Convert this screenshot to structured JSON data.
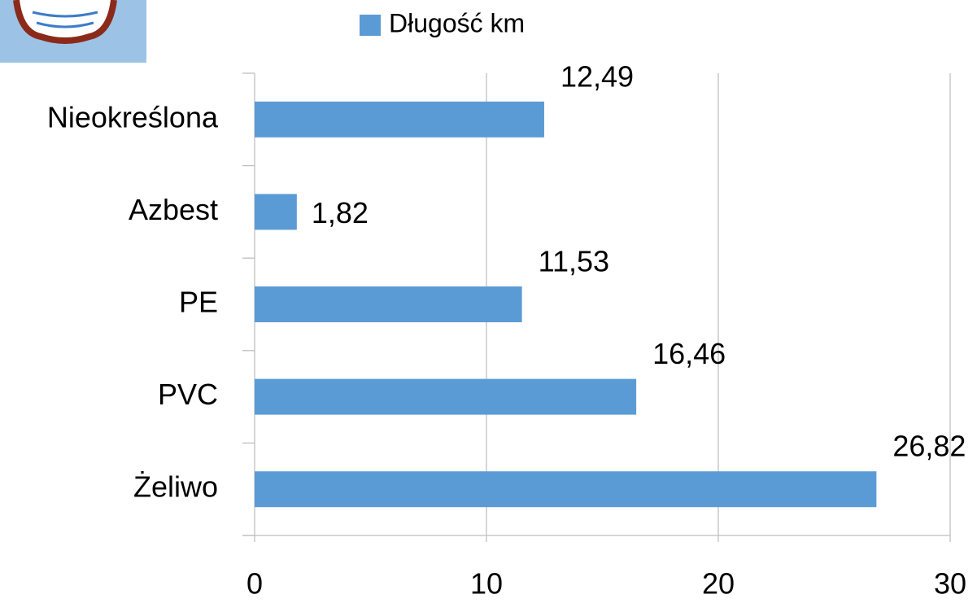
{
  "chart_data": {
    "type": "bar",
    "orientation": "horizontal",
    "categories": [
      "Żeliwo",
      "PVC",
      "PE",
      "Azbest",
      "Nieokreślona"
    ],
    "series": [
      {
        "name": "Długość km",
        "color": "#5b9bd5",
        "values": [
          26.82,
          16.46,
          11.53,
          1.82,
          12.49
        ],
        "value_labels": [
          "26,82",
          "16,46",
          "11,53",
          "1,82",
          "12,49"
        ]
      }
    ],
    "xlim": [
      0,
      30
    ],
    "xticks": [
      0,
      10,
      20,
      30
    ],
    "grid": true,
    "legend": "top"
  }
}
